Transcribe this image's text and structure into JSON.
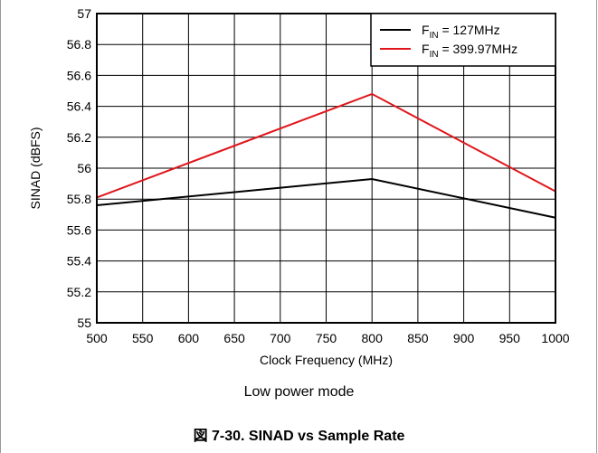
{
  "chart_data": {
    "type": "line",
    "xlabel": "Clock Frequency (MHz)",
    "ylabel": "SINAD (dBFS)",
    "xlim": [
      500,
      1000
    ],
    "ylim": [
      55,
      57
    ],
    "x_ticks": [
      "500",
      "550",
      "600",
      "650",
      "700",
      "750",
      "800",
      "850",
      "900",
      "950",
      "1000"
    ],
    "y_ticks": [
      "55",
      "55.2",
      "55.4",
      "55.6",
      "55.8",
      "56",
      "56.2",
      "56.4",
      "56.6",
      "56.8",
      "57"
    ],
    "grid": true,
    "legend_position": "top-right",
    "series": [
      {
        "name": "F_IN = 127MHz",
        "name_main": "F",
        "name_sub": "IN",
        "name_rest": " = 127MHz",
        "color": "#000000",
        "x": [
          500,
          800,
          1000
        ],
        "y": [
          55.76,
          55.93,
          55.68
        ]
      },
      {
        "name": "F_IN = 399.97MHz",
        "name_main": "F",
        "name_sub": "IN",
        "name_rest": " = 399.97MHz",
        "color": "#e0161b",
        "x": [
          500,
          800,
          1000
        ],
        "y": [
          55.81,
          56.48,
          55.85
        ]
      }
    ]
  },
  "subtitle": "Low power mode",
  "caption": "図 7-30. SINAD vs Sample Rate"
}
